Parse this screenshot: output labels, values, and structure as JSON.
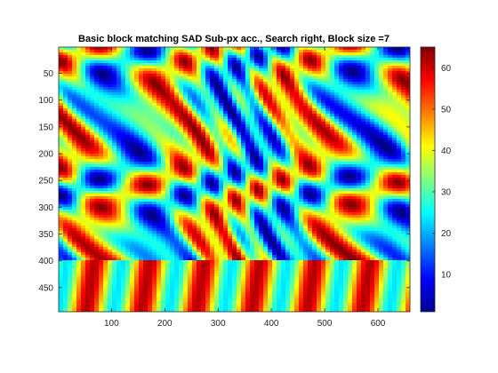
{
  "chart_data": {
    "type": "heatmap",
    "title": "Basic block matching SAD Sub-px acc., Search right, Block size =7",
    "xlabel": "",
    "ylabel": "",
    "colormap": "jet",
    "xlim": [
      1,
      660
    ],
    "ylim": [
      1,
      495
    ],
    "y_reversed": true,
    "xticks": [
      100,
      200,
      300,
      400,
      500,
      600
    ],
    "yticks": [
      50,
      100,
      150,
      200,
      250,
      300,
      350,
      400,
      450
    ],
    "colorbar": {
      "range": [
        1,
        65
      ],
      "ticks": [
        10,
        20,
        30,
        40,
        50,
        60
      ]
    },
    "grid": false
  }
}
